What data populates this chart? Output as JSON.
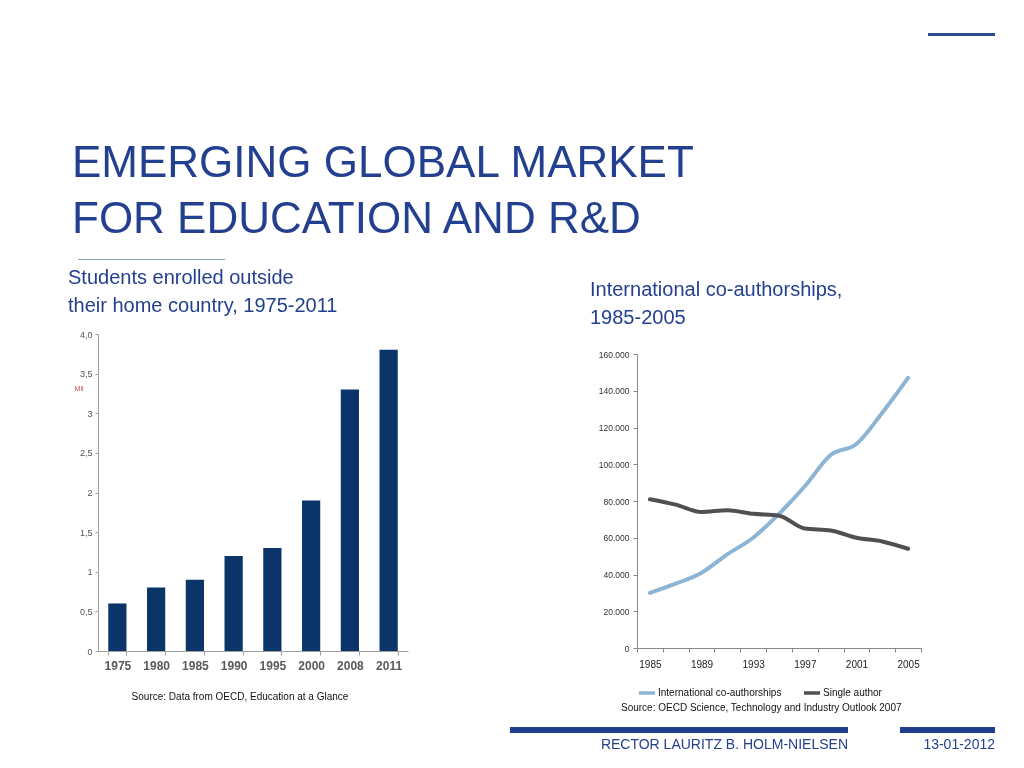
{
  "chart_data": [
    {
      "type": "other",
      "title": "EMERGING GLOBAL MARKET\nFOR EDUCATION AND R&D",
      "annotations": [
        "RECTOR LAURITZ B. HOLM-NIELSEN",
        "13-01-2012"
      ]
    },
    {
      "type": "bar",
      "title": "Students enrolled outside\ntheir home country, 1975-2011",
      "ylabel": "Mil",
      "categories": [
        "1975",
        "1980",
        "1985",
        "1990",
        "1995",
        "2000",
        "2008",
        "2011"
      ],
      "values": [
        0.6,
        0.8,
        0.9,
        1.2,
        1.3,
        1.9,
        3.3,
        3.8
      ],
      "color": "#0b3468",
      "ylim": [
        0,
        4
      ],
      "yticks": [
        0,
        {
          "value": 0.5,
          "label": "0,5"
        },
        1,
        {
          "value": 1.5,
          "label": "1,5"
        },
        2,
        {
          "value": 2.5,
          "label": "2,5"
        },
        3,
        {
          "value": 3.5,
          "label": "3,5"
        },
        {
          "value": 4,
          "label": "4,0"
        }
      ],
      "grid": false,
      "annotations": [
        "Source: Data from OECD, Education at a Glance"
      ]
    },
    {
      "type": "line",
      "title": "International co-authorships,\n1985-2005",
      "categories": [
        "1985",
        null,
        "1989",
        null,
        "1993",
        null,
        "1997",
        null,
        "2001",
        null,
        "2005"
      ],
      "series": [
        {
          "name": "International co-authorships",
          "color": "#8cb4d4",
          "values": [
            30000,
            35000,
            41000,
            51000,
            60000,
            73000,
            88000,
            105000,
            111000,
            128000,
            147000
          ]
        },
        {
          "name": "Single author",
          "color": "#505052",
          "values": [
            81000,
            78000,
            74000,
            75000,
            73000,
            72000,
            65000,
            64000,
            60000,
            58000,
            54000
          ]
        }
      ],
      "ylim": [
        0,
        160000
      ],
      "yticks": [
        0,
        {
          "value": 20000,
          "label": "20.000"
        },
        {
          "value": 40000,
          "label": "40.000"
        },
        {
          "value": 60000,
          "label": "60.000"
        },
        {
          "value": 80000,
          "label": "80.000"
        },
        {
          "value": 100000,
          "label": "100.000"
        },
        {
          "value": 120000,
          "label": "120.000"
        },
        {
          "value": 140000,
          "label": "140.000"
        },
        {
          "value": 160000,
          "label": "160.000"
        }
      ],
      "grid": false,
      "legend": "bottom",
      "annotations": [
        "Source: OECD Science, Technology and Industry Outlook 2007"
      ]
    }
  ]
}
